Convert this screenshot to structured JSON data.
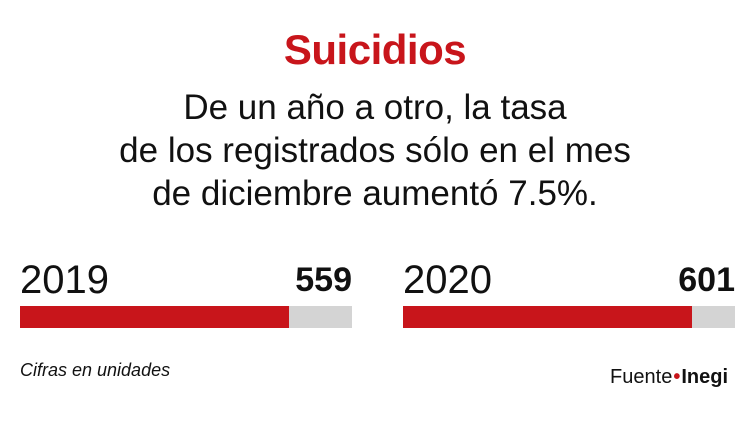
{
  "chart_data": {
    "type": "bar",
    "title": "Suicidios",
    "subtitle_lines": [
      "De un año a otro, la tasa",
      "de los registrados sólo en el mes",
      "de diciembre aumentó 7.5%."
    ],
    "categories": [
      "2019",
      "2020"
    ],
    "values": [
      559,
      601
    ],
    "value_labels": [
      "559",
      "601"
    ],
    "note": "Cifras en unidades",
    "source": {
      "label": "Fuente",
      "separator": "•",
      "org": "Inegi"
    },
    "bar_color": "#c8151b",
    "track_color": "#d4d4d4",
    "title_color": "#c8151b"
  }
}
